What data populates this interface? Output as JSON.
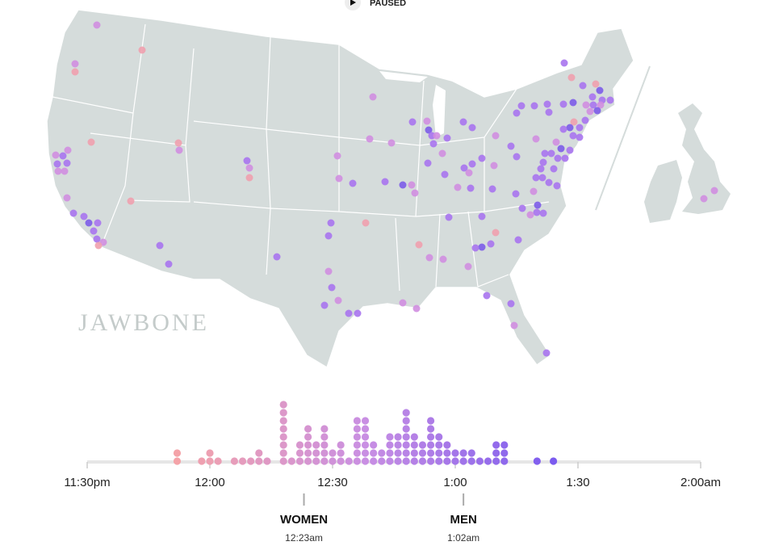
{
  "status": "PAUSED",
  "brand": "JAWBONE",
  "chart_data": {
    "type": "dot_histogram",
    "x": [
      -8,
      -2,
      0,
      2,
      6,
      8,
      10,
      12,
      14,
      18,
      20,
      22,
      24,
      26,
      28,
      30,
      32,
      34,
      36,
      38,
      40,
      42,
      44,
      46,
      48,
      50,
      52,
      54,
      56,
      58,
      60,
      62,
      64,
      66,
      68,
      70,
      72,
      80,
      84
    ],
    "values": [
      2,
      1,
      2,
      1,
      1,
      1,
      1,
      2,
      1,
      8,
      1,
      3,
      5,
      3,
      5,
      2,
      3,
      1,
      6,
      6,
      3,
      2,
      4,
      4,
      7,
      4,
      3,
      6,
      4,
      3,
      2,
      2,
      2,
      1,
      1,
      3,
      3,
      1,
      1
    ],
    "colors": [
      "#f4a3a8",
      "#c98fe3",
      "#7b5bef"
    ],
    "xlim": [
      -30,
      120
    ],
    "xticks": [
      {
        "value": -30,
        "label": "11:30pm"
      },
      {
        "value": 0,
        "label": "12:00"
      },
      {
        "value": 30,
        "label": "12:30"
      },
      {
        "value": 60,
        "label": "1:00"
      },
      {
        "value": 90,
        "label": "1:30"
      },
      {
        "value": 120,
        "label": "2:00am"
      }
    ],
    "annotations": [
      {
        "name": "WOMEN",
        "value": 23,
        "label": "12:23am"
      },
      {
        "name": "MEN",
        "value": 62,
        "label": "1:02am"
      }
    ]
  }
}
